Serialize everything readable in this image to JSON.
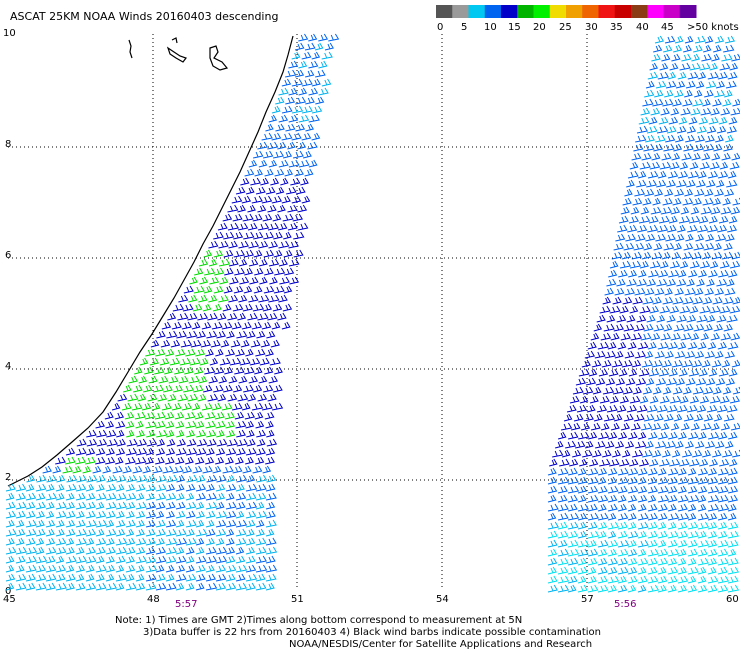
{
  "title": "ASCAT 25KM NOAA Winds 20160403 descending",
  "legend": {
    "colors": [
      "#555555",
      "#9a9a9a",
      "#00c8f0",
      "#0064f0",
      "#0000c8",
      "#00b400",
      "#00f000",
      "#f0dc00",
      "#f0a000",
      "#f06400",
      "#f01414",
      "#c80000",
      "#8c3c14",
      "#ff00ff",
      "#c800c8",
      "#6400a0"
    ],
    "labels": [
      "0",
      "5",
      "10",
      "15",
      "20",
      "25",
      "30",
      "35",
      "40",
      "45",
      ">50 knots"
    ]
  },
  "x_ticks": [
    "45",
    "48",
    "51",
    "54",
    "57",
    "60"
  ],
  "y_ticks": [
    "0",
    "2",
    "4",
    "6",
    "8",
    "10"
  ],
  "times": [
    {
      "label": "5:57",
      "color": "#800080"
    },
    {
      "label": "5:56",
      "color": "#800080"
    }
  ],
  "notes": [
    "Note: 1) Times are GMT 2)Times along bottom correspond to measurement at 5N",
    "3)Data buffer is 22 hrs from 20160403 4) Black wind barbs indicate possible contamination",
    "NOAA/NESDIS/Center for Satellite Applications and Research"
  ],
  "barb_colors": {
    "light_blue": "#00b4f0",
    "blue": "#0064f0",
    "dark_blue": "#0000c8",
    "green": "#00dc00",
    "cyan": "#00e0f0"
  }
}
